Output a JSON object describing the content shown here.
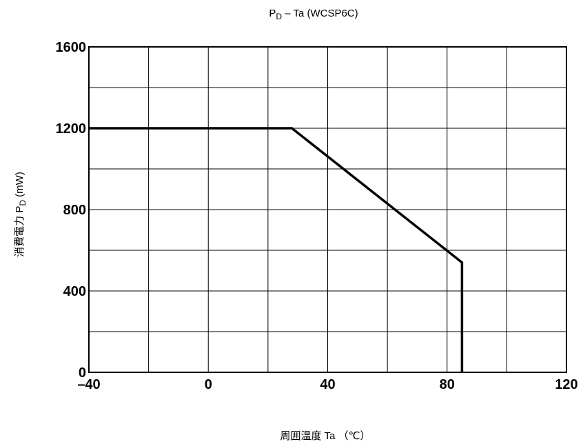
{
  "chart_data": {
    "type": "line",
    "title_main": "P",
    "title_sub": "D",
    "title_rest": " – Ta (WCSP6C)",
    "xlabel": "周囲温度  Ta  （℃）",
    "ylabel_main": "消費電力  P",
    "ylabel_sub": "D",
    "ylabel_unit": "  (mW)",
    "xlim": [
      -40,
      120
    ],
    "ylim": [
      0,
      1600
    ],
    "x_ticks": [
      -40,
      0,
      40,
      80,
      120
    ],
    "x_tick_labels": [
      "–40",
      "0",
      "40",
      "80",
      "120"
    ],
    "y_ticks": [
      0,
      400,
      800,
      1200,
      1600
    ],
    "y_tick_labels": [
      "0",
      "400",
      "800",
      "1200",
      "1600"
    ],
    "x_grid_step": 20,
    "y_grid_step": 200,
    "grid": true,
    "series": [
      {
        "x": [
          -40,
          28,
          85,
          85
        ],
        "y": [
          1200,
          1200,
          540,
          0
        ]
      }
    ],
    "line_color": "#000000"
  }
}
